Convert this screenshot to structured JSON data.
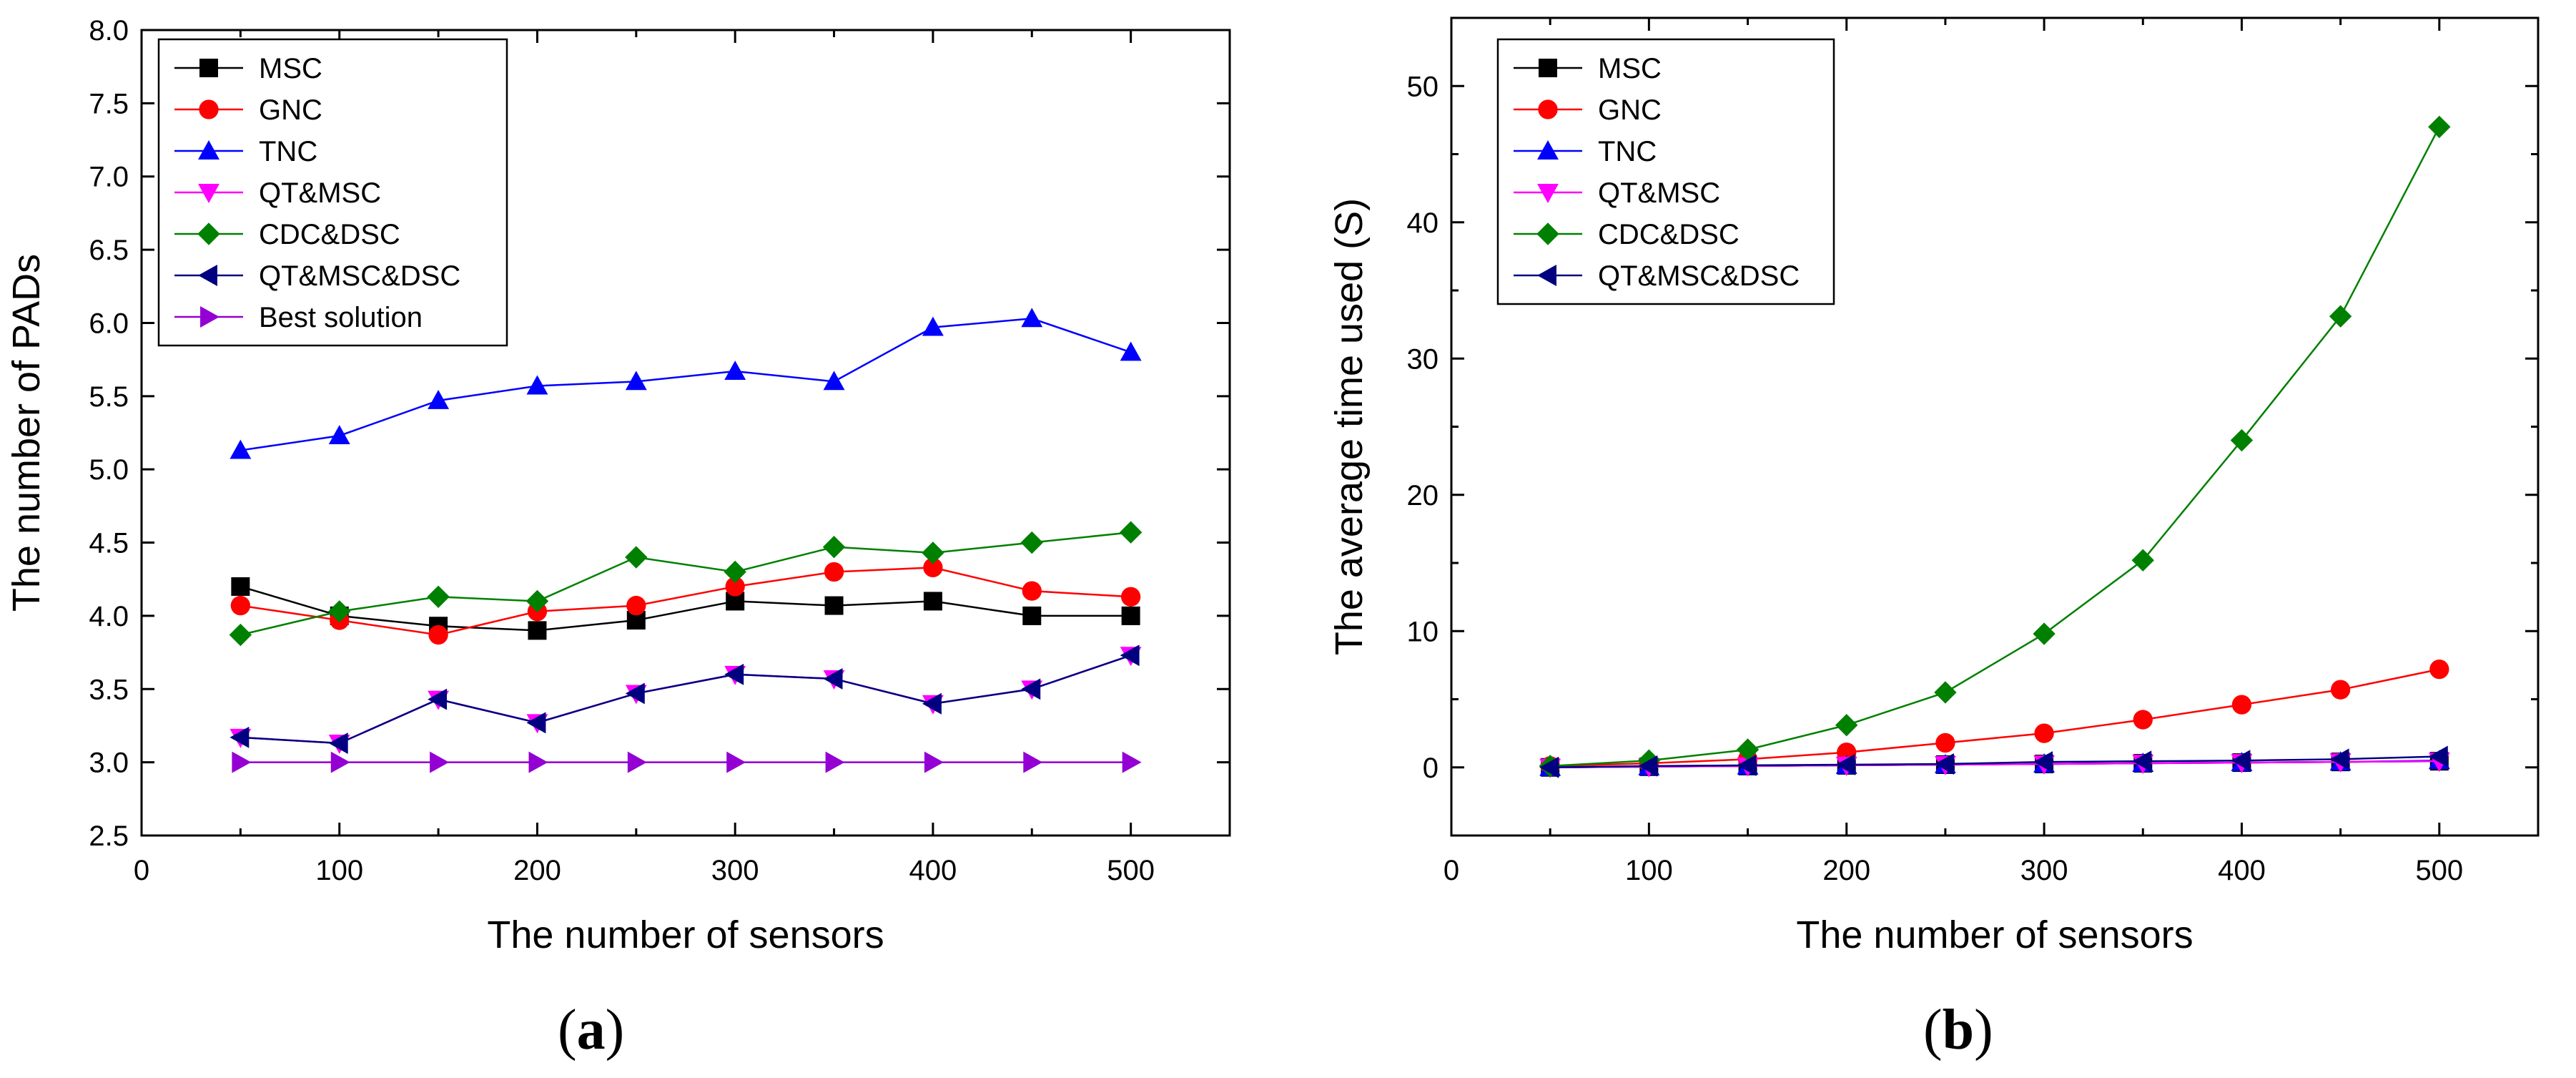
{
  "panel_labels": [
    "a",
    "b"
  ],
  "chart_data": [
    {
      "type": "line",
      "title": "",
      "xlabel": "The number of sensors",
      "ylabel": "The number of PADs",
      "xlim": [
        0,
        550
      ],
      "ylim": [
        2.5,
        8.0
      ],
      "xticks": [
        0,
        100,
        200,
        300,
        400,
        500
      ],
      "xtick_labels": [
        "0",
        "100",
        "200",
        "300",
        "400",
        "500"
      ],
      "yticks": [
        2.5,
        3.0,
        3.5,
        4.0,
        4.5,
        5.0,
        5.5,
        6.0,
        6.5,
        7.0,
        7.5,
        8.0
      ],
      "ytick_labels": [
        "2.5",
        "3.0",
        "3.5",
        "4.0",
        "4.5",
        "5.0",
        "5.5",
        "6.0",
        "6.5",
        "7.0",
        "7.5",
        "8.0"
      ],
      "grid": false,
      "legend_position": "top-left",
      "x": [
        50,
        100,
        150,
        200,
        250,
        300,
        350,
        400,
        450,
        500
      ],
      "series": [
        {
          "name": "MSC",
          "color": "#000000",
          "marker": "square",
          "values": [
            4.2,
            4.0,
            3.93,
            3.9,
            3.97,
            4.1,
            4.07,
            4.1,
            4.0,
            4.0
          ]
        },
        {
          "name": "GNC",
          "color": "#ff0000",
          "marker": "circle",
          "values": [
            4.07,
            3.97,
            3.87,
            4.03,
            4.07,
            4.2,
            4.3,
            4.33,
            4.17,
            4.13
          ]
        },
        {
          "name": "TNC",
          "color": "#0000ff",
          "marker": "triangle-up",
          "values": [
            5.13,
            5.23,
            5.47,
            5.57,
            5.6,
            5.67,
            5.6,
            5.97,
            6.03,
            5.8
          ]
        },
        {
          "name": "QT&MSC",
          "color": "#ff00ff",
          "marker": "triangle-down",
          "values": [
            3.17,
            3.13,
            3.43,
            3.27,
            3.47,
            3.6,
            3.57,
            3.4,
            3.5,
            3.73
          ]
        },
        {
          "name": "CDC&DSC",
          "color": "#008000",
          "marker": "diamond",
          "values": [
            3.87,
            4.03,
            4.13,
            4.1,
            4.4,
            4.3,
            4.47,
            4.43,
            4.5,
            4.57
          ]
        },
        {
          "name": "QT&MSC&DSC",
          "color": "#000080",
          "marker": "triangle-left",
          "values": [
            3.17,
            3.13,
            3.43,
            3.27,
            3.47,
            3.6,
            3.57,
            3.4,
            3.5,
            3.73
          ]
        },
        {
          "name": "Best solution",
          "color": "#9400d3",
          "marker": "triangle-right",
          "values": [
            3.0,
            3.0,
            3.0,
            3.0,
            3.0,
            3.0,
            3.0,
            3.0,
            3.0,
            3.0
          ]
        }
      ]
    },
    {
      "type": "line",
      "title": "",
      "xlabel": "The number of sensors",
      "ylabel": "The average time used (S)",
      "xlim": [
        0,
        550
      ],
      "ylim": [
        -5,
        55
      ],
      "xticks": [
        0,
        100,
        200,
        300,
        400,
        500
      ],
      "xtick_labels": [
        "0",
        "100",
        "200",
        "300",
        "400",
        "500"
      ],
      "yticks": [
        0,
        10,
        20,
        30,
        40,
        50
      ],
      "ytick_labels": [
        "0",
        "10",
        "20",
        "30",
        "40",
        "50"
      ],
      "grid": false,
      "legend_position": "top-left",
      "x": [
        50,
        100,
        150,
        200,
        250,
        300,
        350,
        400,
        450,
        500
      ],
      "series": [
        {
          "name": "MSC",
          "color": "#000000",
          "marker": "square",
          "values": [
            0.0,
            0.05,
            0.1,
            0.15,
            0.2,
            0.25,
            0.3,
            0.35,
            0.4,
            0.45
          ]
        },
        {
          "name": "GNC",
          "color": "#ff0000",
          "marker": "circle",
          "values": [
            0.1,
            0.3,
            0.6,
            1.1,
            1.8,
            2.5,
            3.5,
            4.6,
            5.7,
            7.2
          ]
        },
        {
          "name": "TNC",
          "color": "#0000ff",
          "marker": "triangle-up",
          "values": [
            0.0,
            0.05,
            0.1,
            0.15,
            0.2,
            0.25,
            0.3,
            0.35,
            0.4,
            0.5
          ]
        },
        {
          "name": "QT&MSC",
          "color": "#ff00ff",
          "marker": "triangle-down",
          "values": [
            0.0,
            0.05,
            0.1,
            0.15,
            0.2,
            0.25,
            0.3,
            0.35,
            0.4,
            0.45
          ]
        },
        {
          "name": "CDC&DSC",
          "color": "#008000",
          "marker": "diamond",
          "values": [
            0.1,
            0.5,
            1.3,
            3.1,
            5.5,
            9.8,
            15.2,
            24.0,
            33.1,
            47.0
          ]
        },
        {
          "name": "QT&MSC&DSC",
          "color": "#000080",
          "marker": "triangle-left",
          "values": [
            0.0,
            0.1,
            0.15,
            0.2,
            0.25,
            0.4,
            0.45,
            0.5,
            0.6,
            0.8
          ]
        }
      ]
    }
  ]
}
